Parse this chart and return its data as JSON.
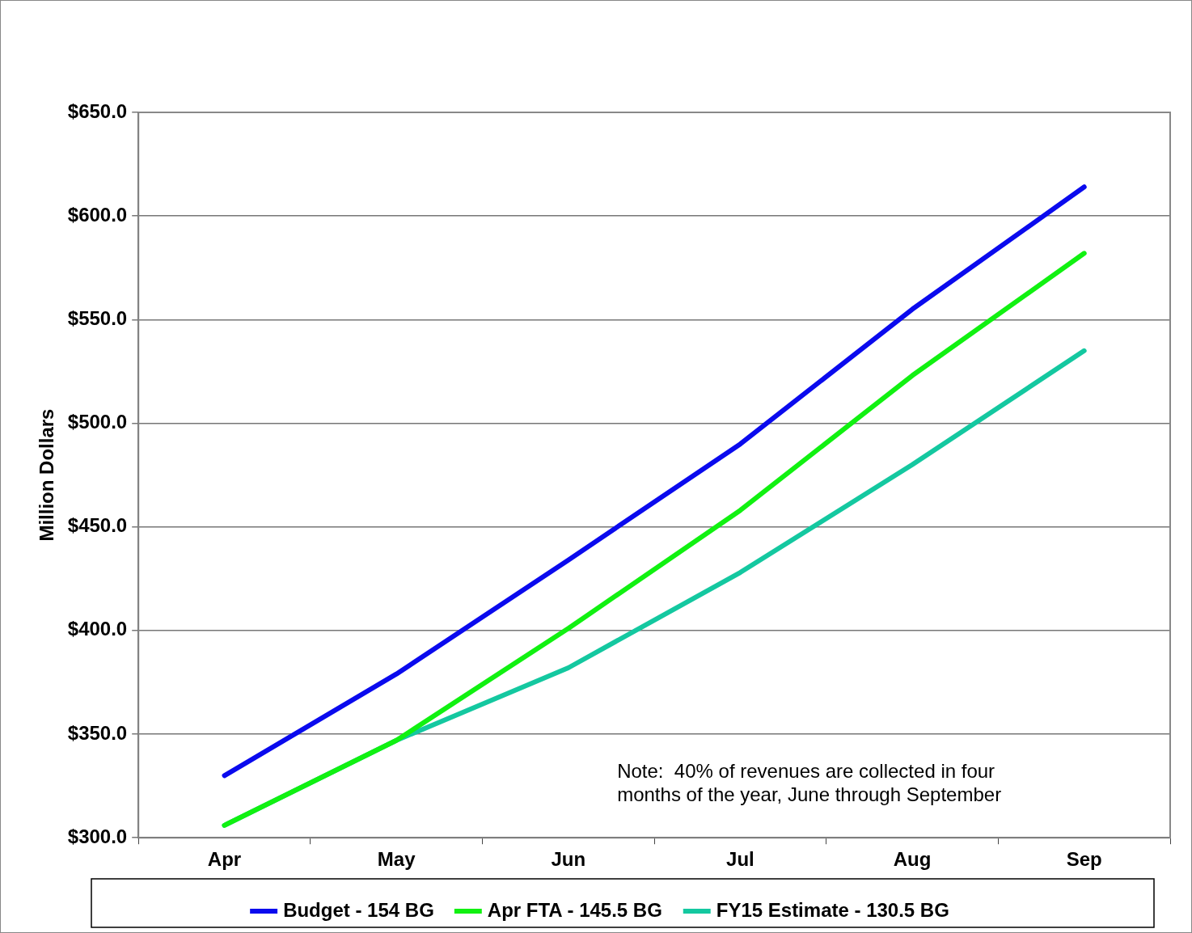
{
  "chart_data": {
    "type": "line",
    "ylabel": "Million Dollars",
    "categories": [
      "Apr",
      "May",
      "Jun",
      "Jul",
      "Aug",
      "Sep"
    ],
    "series": [
      {
        "name": "Budget - 154 BG",
        "color": "#0a0aee",
        "values": [
          330,
          379,
          434,
          490,
          555,
          614
        ]
      },
      {
        "name": "Apr FTA - 145.5 BG",
        "color": "#11f111",
        "values": [
          306,
          347,
          401,
          458,
          523,
          582
        ]
      },
      {
        "name": "FY15 Estimate - 130.5 BG",
        "color": "#14c8a0",
        "values": [
          306,
          347,
          382,
          428,
          480,
          535
        ]
      }
    ],
    "ylim": [
      300,
      650
    ],
    "yticks": [
      {
        "value": 300,
        "label": "$300.0"
      },
      {
        "value": 350,
        "label": "$350.0"
      },
      {
        "value": 400,
        "label": "$400.0"
      },
      {
        "value": 450,
        "label": "$450.0"
      },
      {
        "value": 500,
        "label": "$500.0"
      },
      {
        "value": 550,
        "label": "$550.0"
      },
      {
        "value": 600,
        "label": "$600.0"
      },
      {
        "value": 650,
        "label": "$650.0"
      }
    ],
    "grid": "y",
    "legend": "bottom",
    "marker": "none",
    "line_style": "solid",
    "annotations": [
      "Note:  40% of revenues are collected in four\nmonths of the year, June through September"
    ]
  }
}
